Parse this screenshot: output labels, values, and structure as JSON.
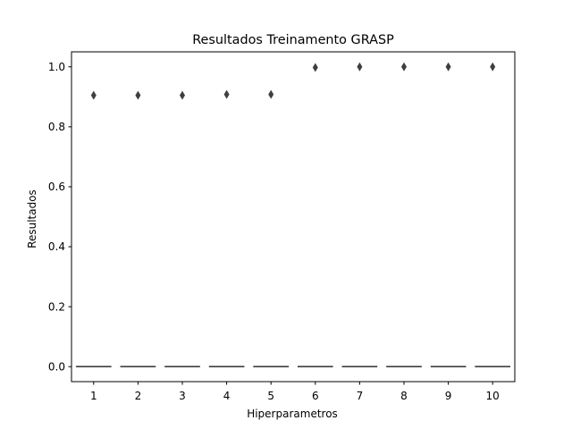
{
  "chart_data": {
    "type": "box",
    "title": "Resultados Treinamento GRASP",
    "xlabel": "Hiperparametros",
    "ylabel": "Resultados",
    "categories": [
      "1",
      "2",
      "3",
      "4",
      "5",
      "6",
      "7",
      "8",
      "9",
      "10"
    ],
    "ylim": [
      -0.05,
      1.05
    ],
    "yticks": [
      0.0,
      0.2,
      0.4,
      0.6,
      0.8,
      1.0
    ],
    "ytick_labels": [
      "0.0",
      "0.2",
      "0.4",
      "0.6",
      "0.8",
      "1.0"
    ],
    "medians": [
      0,
      0,
      0,
      0,
      0,
      0,
      0,
      0,
      0,
      0
    ],
    "outliers": [
      0.905,
      0.905,
      0.905,
      0.908,
      0.908,
      0.998,
      1.0,
      1.0,
      1.0,
      1.0
    ],
    "grid": false,
    "colors": {
      "box": "#3f3f3f",
      "outlier": "#3f3f3f",
      "axis": "#000000"
    }
  }
}
